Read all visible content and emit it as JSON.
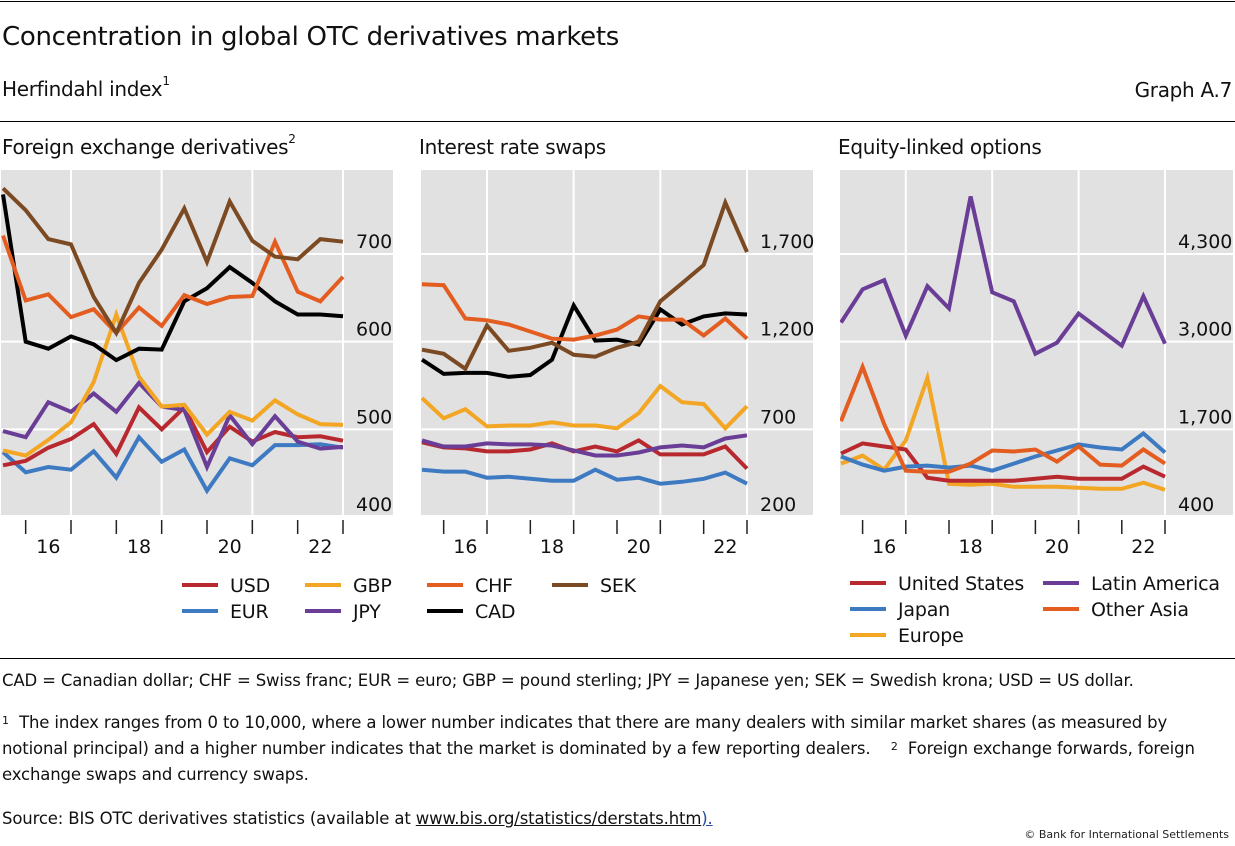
{
  "header": {
    "title": "Concentration in global OTC derivatives markets",
    "subtitle": "Herfindahl index",
    "subtitle_sup": "1",
    "graph_id": "Graph A.7"
  },
  "chart_data": [
    {
      "type": "line",
      "title": "Foreign exchange derivatives",
      "title_sup": "2",
      "xlabel": "",
      "ylabel": "",
      "x_tick_labels": [
        "16",
        "18",
        "20",
        "22"
      ],
      "x_start_year": 2015.5,
      "x_step_years": 0.5,
      "ylim": [
        400,
        800
      ],
      "yticks": [
        400,
        500,
        600,
        700
      ],
      "ytick_labels": [
        "400",
        "500",
        "600",
        "700"
      ],
      "grid": true,
      "y_axis_side": "right",
      "series": [
        {
          "name": "USD",
          "color": "#b8292f",
          "values": [
            459,
            464,
            479,
            489,
            506,
            472,
            525,
            500,
            525,
            474,
            503,
            486,
            497,
            491,
            492,
            487
          ]
        },
        {
          "name": "EUR",
          "color": "#3d7ac2",
          "values": [
            474,
            451,
            457,
            454,
            475,
            445,
            491,
            463,
            477,
            430,
            467,
            459,
            482,
            482,
            483,
            479
          ]
        },
        {
          "name": "GBP",
          "color": "#f2a623",
          "values": [
            476,
            470,
            488,
            508,
            554,
            631,
            560,
            526,
            528,
            494,
            520,
            510,
            533,
            517,
            506,
            505
          ]
        },
        {
          "name": "JPY",
          "color": "#6a3d96",
          "values": [
            498,
            491,
            531,
            520,
            541,
            520,
            553,
            526,
            522,
            457,
            516,
            483,
            515,
            486,
            478,
            480
          ]
        },
        {
          "name": "CHF",
          "color": "#e35d20",
          "values": [
            721,
            647,
            654,
            628,
            637,
            610,
            639,
            618,
            653,
            643,
            651,
            652,
            714,
            657,
            646,
            674
          ]
        },
        {
          "name": "CAD",
          "color": "#000000",
          "values": [
            768,
            600,
            592,
            606,
            597,
            579,
            592,
            591,
            646,
            661,
            685,
            667,
            646,
            631,
            631,
            629
          ]
        },
        {
          "name": "SEK",
          "color": "#7b4a23",
          "values": [
            775,
            750,
            717,
            711,
            651,
            610,
            667,
            705,
            752,
            691,
            760,
            715,
            697,
            694,
            717,
            714
          ]
        }
      ]
    },
    {
      "type": "line",
      "title": "Interest rate swaps",
      "title_sup": "",
      "xlabel": "",
      "ylabel": "",
      "x_tick_labels": [
        "16",
        "18",
        "20",
        "22"
      ],
      "x_start_year": 2015.5,
      "x_step_years": 0.5,
      "ylim": [
        200,
        2200
      ],
      "yticks": [
        200,
        700,
        1200,
        1700
      ],
      "ytick_labels": [
        "200",
        "700",
        "1,200",
        "1,700"
      ],
      "grid": true,
      "y_axis_side": "right",
      "series": [
        {
          "name": "USD",
          "color": "#b8292f",
          "values": [
            626,
            597,
            591,
            574,
            574,
            585,
            620,
            574,
            602,
            574,
            637,
            557,
            557,
            557,
            602,
            476
          ]
        },
        {
          "name": "EUR",
          "color": "#3d7ac2",
          "values": [
            470,
            459,
            459,
            424,
            430,
            418,
            407,
            407,
            470,
            413,
            424,
            390,
            401,
            418,
            453,
            390
          ]
        },
        {
          "name": "GBP",
          "color": "#f2a623",
          "values": [
            878,
            763,
            815,
            717,
            722,
            722,
            740,
            722,
            722,
            706,
            792,
            947,
            855,
            844,
            706,
            832
          ]
        },
        {
          "name": "JPY",
          "color": "#6a3d96",
          "values": [
            637,
            602,
            602,
            620,
            614,
            614,
            608,
            580,
            551,
            551,
            568,
            597,
            608,
            597,
            648,
            666
          ]
        },
        {
          "name": "CHF",
          "color": "#e35d20",
          "values": [
            1528,
            1522,
            1332,
            1322,
            1298,
            1258,
            1217,
            1212,
            1235,
            1269,
            1344,
            1326,
            1326,
            1235,
            1332,
            1217
          ]
        },
        {
          "name": "CAD",
          "color": "#000000",
          "values": [
            1097,
            1016,
            1022,
            1022,
            999,
            1010,
            1097,
            1407,
            1206,
            1212,
            1183,
            1384,
            1298,
            1344,
            1361,
            1355
          ]
        },
        {
          "name": "SEK",
          "color": "#7b4a23",
          "values": [
            1154,
            1131,
            1045,
            1292,
            1148,
            1165,
            1194,
            1125,
            1114,
            1165,
            1200,
            1430,
            1533,
            1637,
            1993,
            1711
          ]
        }
      ]
    },
    {
      "type": "line",
      "title": "Equity-linked options",
      "title_sup": "",
      "xlabel": "",
      "ylabel": "",
      "x_tick_labels": [
        "16",
        "18",
        "20",
        "22"
      ],
      "x_start_year": 2015.5,
      "x_step_years": 0.5,
      "ylim": [
        400,
        5600
      ],
      "yticks": [
        400,
        1700,
        3000,
        4300
      ],
      "ytick_labels": [
        "400",
        "1,700",
        "3,000",
        "4,300"
      ],
      "grid": true,
      "y_axis_side": "right",
      "series": [
        {
          "name": "United States",
          "color": "#b8292f",
          "values": [
            1341,
            1491,
            1446,
            1401,
            983,
            938,
            938,
            938,
            938,
            968,
            998,
            968,
            968,
            968,
            1147,
            998
          ]
        },
        {
          "name": "Japan",
          "color": "#3d7ac2",
          "values": [
            1297,
            1177,
            1087,
            1147,
            1162,
            1132,
            1162,
            1087,
            1192,
            1297,
            1386,
            1476,
            1431,
            1401,
            1640,
            1356
          ]
        },
        {
          "name": "Europe",
          "color": "#f2a623",
          "values": [
            1192,
            1311,
            1102,
            1536,
            2462,
            893,
            878,
            893,
            848,
            848,
            848,
            833,
            818,
            818,
            908,
            803
          ]
        },
        {
          "name": "Latin America",
          "color": "#6a3d96",
          "values": [
            3284,
            3777,
            3911,
            3090,
            3822,
            3493,
            5152,
            3732,
            3598,
            2821,
            2985,
            3418,
            3179,
            2940,
            3672,
            2970
          ]
        },
        {
          "name": "Other Asia",
          "color": "#e35d20",
          "values": [
            1820,
            2626,
            1776,
            1087,
            1072,
            1072,
            1192,
            1386,
            1371,
            1401,
            1222,
            1446,
            1177,
            1162,
            1401,
            1192
          ]
        }
      ]
    }
  ],
  "legends": {
    "fx_irs": [
      {
        "label": "USD",
        "color": "#b8292f"
      },
      {
        "label": "GBP",
        "color": "#f2a623"
      },
      {
        "label": "CHF",
        "color": "#e35d20"
      },
      {
        "label": "SEK",
        "color": "#7b4a23"
      },
      {
        "label": "EUR",
        "color": "#3d7ac2"
      },
      {
        "label": "JPY",
        "color": "#6a3d96"
      },
      {
        "label": "CAD",
        "color": "#000000"
      }
    ],
    "equity": [
      {
        "label": "United States",
        "color": "#b8292f"
      },
      {
        "label": "Latin America",
        "color": "#6a3d96"
      },
      {
        "label": "Japan",
        "color": "#3d7ac2"
      },
      {
        "label": "Other Asia",
        "color": "#e35d20"
      },
      {
        "label": "Europe",
        "color": "#f2a623"
      }
    ]
  },
  "footer": {
    "abbreviations": "CAD = Canadian dollar; CHF = Swiss franc; EUR = euro; GBP = pound sterling; JPY = Japanese yen; SEK = Swedish krona; USD = US dollar.",
    "note1_marker": "1",
    "note1": "The index ranges from 0 to 10,000, where a lower number indicates that there are many dealers with similar market shares (as measured by notional principal) and a higher number indicates that the market is dominated by a few reporting dealers.",
    "note2_marker": "2",
    "note2": "Foreign exchange forwards, foreign exchange swaps and currency swaps.",
    "source_prefix": "Source: BIS OTC derivatives statistics (available at ",
    "source_link": "www.bis.org/statistics/derstats.htm",
    "source_suffix": ").",
    "copyright": "© Bank for International Settlements"
  }
}
